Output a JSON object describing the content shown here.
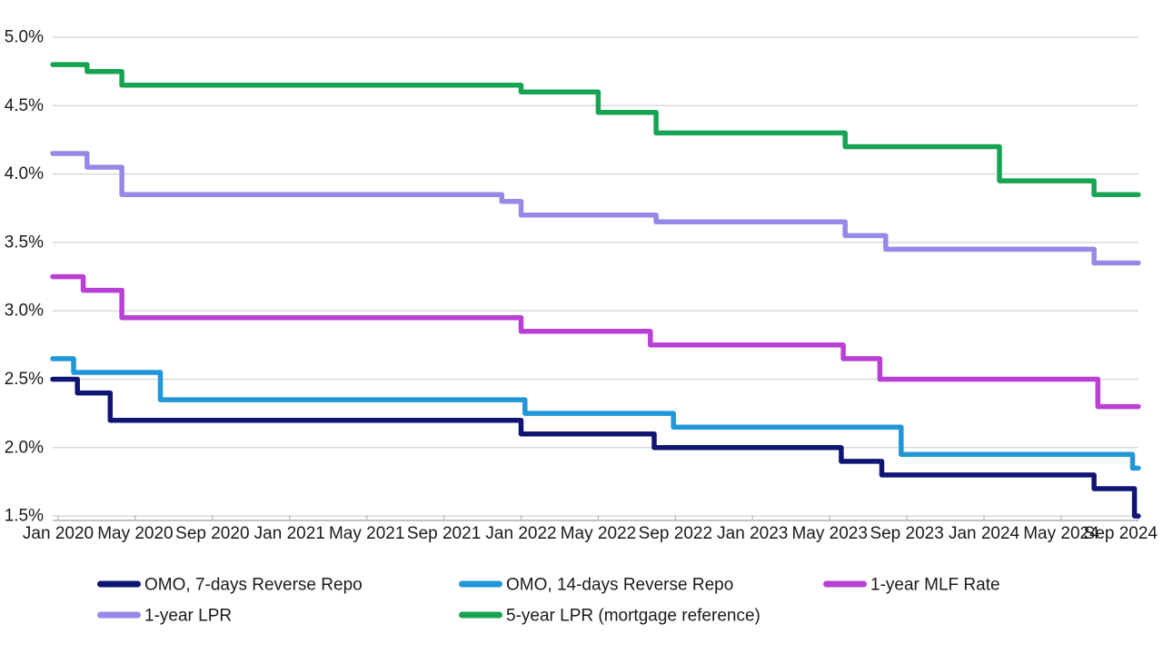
{
  "chart_data": {
    "type": "line",
    "step": true,
    "title": "",
    "description": "China policy interest rates, stepped monthly series, Jan 2020 - Sep 2024",
    "grid": true,
    "legend_position": "bottom",
    "x_axis": {
      "tick_labels": [
        "Jan 2020",
        "May 2020",
        "Sep 2020",
        "Jan 2021",
        "May 2021",
        "Sep 2021",
        "Jan 2022",
        "May 2022",
        "Sep 2022",
        "Jan 2023",
        "May 2023",
        "Sep 2023",
        "Jan 2024",
        "May 2024",
        "Sep 2024"
      ],
      "tick_months": [
        0,
        4,
        8,
        12,
        16,
        20,
        24,
        28,
        32,
        36,
        40,
        44,
        48,
        52,
        56
      ],
      "start_month": -0.3,
      "end_month": 56
    },
    "y_axis": {
      "tick_labels": [
        "5.0%",
        "4.5%",
        "4.0%",
        "3.5%",
        "3.0%",
        "2.5%",
        "2.0%",
        "1.5%"
      ],
      "tick_values": [
        5.0,
        4.5,
        4.0,
        3.5,
        3.0,
        2.5,
        2.0,
        1.5
      ],
      "min": 1.5,
      "max": 5.0,
      "unit": "%"
    },
    "colors": {
      "grid": "#d9d9d9",
      "axis": "#c2c2c2",
      "text": "#1a1a1a",
      "background": "#ffffff"
    },
    "series": [
      {
        "name": "OMO, 7-days Reverse Repo",
        "color": "#101574",
        "points": [
          [
            -0.3,
            2.5
          ],
          [
            1.0,
            2.4
          ],
          [
            2.7,
            2.2
          ],
          [
            24.0,
            2.1
          ],
          [
            30.9,
            2.0
          ],
          [
            40.6,
            1.9
          ],
          [
            42.7,
            1.8
          ],
          [
            53.7,
            1.7
          ],
          [
            55.8,
            1.5
          ]
        ]
      },
      {
        "name": "OMO, 14-days Reverse Repo",
        "color": "#2196d8",
        "points": [
          [
            -0.3,
            2.65
          ],
          [
            0.8,
            2.55
          ],
          [
            5.3,
            2.35
          ],
          [
            24.2,
            2.25
          ],
          [
            31.9,
            2.15
          ],
          [
            43.7,
            1.95
          ],
          [
            55.7,
            1.85
          ]
        ]
      },
      {
        "name": "1-year MLF Rate",
        "color": "#b93fd6",
        "points": [
          [
            -0.3,
            3.25
          ],
          [
            1.3,
            3.15
          ],
          [
            3.3,
            2.95
          ],
          [
            24.0,
            2.85
          ],
          [
            30.7,
            2.75
          ],
          [
            40.7,
            2.65
          ],
          [
            42.6,
            2.5
          ],
          [
            53.9,
            2.3
          ]
        ]
      },
      {
        "name": "1-year LPR",
        "color": "#9489e5",
        "points": [
          [
            -0.3,
            4.15
          ],
          [
            1.5,
            4.05
          ],
          [
            3.3,
            3.85
          ],
          [
            23.0,
            3.8
          ],
          [
            24.0,
            3.7
          ],
          [
            31.0,
            3.65
          ],
          [
            40.8,
            3.55
          ],
          [
            42.9,
            3.45
          ],
          [
            53.7,
            3.35
          ]
        ]
      },
      {
        "name": "5-year LPR (mortgage reference)",
        "color": "#17a452",
        "points": [
          [
            -0.3,
            4.8
          ],
          [
            1.5,
            4.75
          ],
          [
            3.3,
            4.65
          ],
          [
            24.0,
            4.6
          ],
          [
            28.0,
            4.45
          ],
          [
            31.0,
            4.3
          ],
          [
            40.8,
            4.2
          ],
          [
            48.8,
            3.95
          ],
          [
            53.7,
            3.85
          ]
        ]
      }
    ]
  }
}
